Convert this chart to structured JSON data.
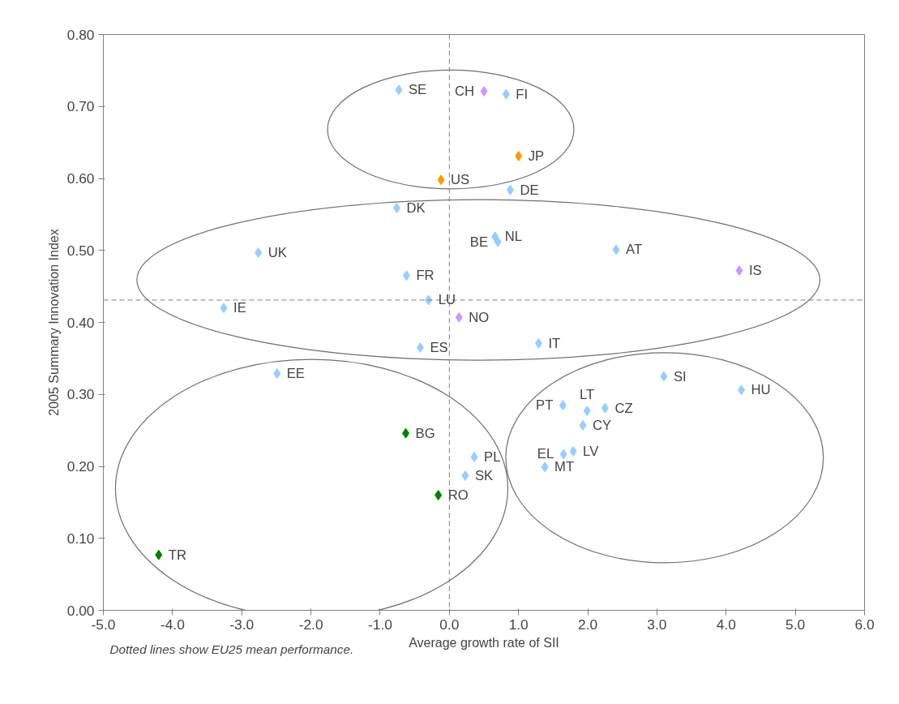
{
  "chart_data": {
    "type": "scatter",
    "xlabel": "Average growth rate of SII",
    "ylabel": "2005 Summary Innovation Index",
    "marker": "diamond",
    "grid": false,
    "xlim": [
      -5,
      6
    ],
    "ylim": [
      0,
      0.8
    ],
    "xticks": [
      {
        "value": -5,
        "label": "-5.0"
      },
      {
        "value": -4,
        "label": "-4.0"
      },
      {
        "value": -3,
        "label": "-3.0"
      },
      {
        "value": -2,
        "label": "-2.0"
      },
      {
        "value": -1,
        "label": "-1.0"
      },
      {
        "value": 0,
        "label": "0.0"
      },
      {
        "value": 1,
        "label": "1.0"
      },
      {
        "value": 2,
        "label": "2.0"
      },
      {
        "value": 3,
        "label": "3.0"
      },
      {
        "value": 4,
        "label": "4.0"
      },
      {
        "value": 5,
        "label": "5.0"
      },
      {
        "value": 6,
        "label": "6.0"
      }
    ],
    "yticks": [
      {
        "value": 0,
        "label": "0.00"
      },
      {
        "value": 0.1,
        "label": "0.10"
      },
      {
        "value": 0.2,
        "label": "0.20"
      },
      {
        "value": 0.3,
        "label": "0.30"
      },
      {
        "value": 0.4,
        "label": "0.40"
      },
      {
        "value": 0.5,
        "label": "0.50"
      },
      {
        "value": 0.6,
        "label": "0.60"
      },
      {
        "value": 0.7,
        "label": "0.70"
      },
      {
        "value": 0.8,
        "label": "0.80"
      }
    ],
    "series": [
      {
        "color": "#99ccff",
        "x": [
          -0.73,
          0.82,
          0.88,
          -0.76,
          0.66,
          0.7,
          -2.76,
          2.41,
          -0.62,
          -0.3,
          -3.26,
          -0.42,
          1.29,
          -2.49,
          3.1,
          4.22,
          1.64,
          1.99,
          2.25,
          1.93,
          0.36,
          1.79,
          1.65,
          1.38,
          0.23
        ],
        "values": [
          0.723,
          0.717,
          0.584,
          0.559,
          0.519,
          0.512,
          0.497,
          0.501,
          0.465,
          0.431,
          0.42,
          0.365,
          0.371,
          0.329,
          0.325,
          0.306,
          0.285,
          0.277,
          0.281,
          0.257,
          0.213,
          0.221,
          0.217,
          0.199,
          0.187
        ]
      },
      {
        "color": "#cc99ff",
        "x": [
          0.5,
          4.19,
          0.14
        ],
        "values": [
          0.721,
          0.472,
          0.407
        ]
      },
      {
        "color": "#ff9900",
        "x": [
          1.0,
          -0.12
        ],
        "values": [
          0.631,
          0.598
        ]
      },
      {
        "color": "#008000",
        "x": [
          -0.63,
          -0.16,
          -4.2
        ],
        "values": [
          0.246,
          0.16,
          0.077
        ]
      }
    ],
    "ref_lines": [
      {
        "axis": "x",
        "value": 0,
        "color": "#808080",
        "line_style": "dashed"
      },
      {
        "axis": "y",
        "value": 0.431,
        "color": "#808080",
        "line_style": "dashed"
      }
    ],
    "annotations": [
      {
        "text": "SE",
        "x": -0.73,
        "y": 0.723
      },
      {
        "text": "FI",
        "x": 0.82,
        "y": 0.717
      },
      {
        "text": "DE",
        "x": 0.88,
        "y": 0.584
      },
      {
        "text": "DK",
        "x": -0.76,
        "y": 0.559
      },
      {
        "text": "NL",
        "x": 0.66,
        "y": 0.519
      },
      {
        "text": "BE",
        "x": 0.7,
        "y": 0.512
      },
      {
        "text": "UK",
        "x": -2.76,
        "y": 0.497
      },
      {
        "text": "AT",
        "x": 2.41,
        "y": 0.501
      },
      {
        "text": "FR",
        "x": -0.62,
        "y": 0.465
      },
      {
        "text": "LU",
        "x": -0.3,
        "y": 0.431
      },
      {
        "text": "IE",
        "x": -3.26,
        "y": 0.42
      },
      {
        "text": "ES",
        "x": -0.42,
        "y": 0.365
      },
      {
        "text": "IT",
        "x": 1.29,
        "y": 0.371
      },
      {
        "text": "EE",
        "x": -2.49,
        "y": 0.329
      },
      {
        "text": "SI",
        "x": 3.1,
        "y": 0.325
      },
      {
        "text": "HU",
        "x": 4.22,
        "y": 0.306
      },
      {
        "text": "PT",
        "x": 1.64,
        "y": 0.285
      },
      {
        "text": "LT",
        "x": 1.99,
        "y": 0.277
      },
      {
        "text": "CZ",
        "x": 2.25,
        "y": 0.281
      },
      {
        "text": "CY",
        "x": 1.93,
        "y": 0.257
      },
      {
        "text": "PL",
        "x": 0.36,
        "y": 0.213
      },
      {
        "text": "LV",
        "x": 1.79,
        "y": 0.221
      },
      {
        "text": "EL",
        "x": 1.65,
        "y": 0.217
      },
      {
        "text": "MT",
        "x": 1.38,
        "y": 0.199
      },
      {
        "text": "SK",
        "x": 0.23,
        "y": 0.187
      },
      {
        "text": "CH",
        "x": 0.5,
        "y": 0.721
      },
      {
        "text": "IS",
        "x": 4.19,
        "y": 0.472
      },
      {
        "text": "NO",
        "x": 0.14,
        "y": 0.407
      },
      {
        "text": "JP",
        "x": 1.0,
        "y": 0.631
      },
      {
        "text": "US",
        "x": -0.12,
        "y": 0.598
      },
      {
        "text": "BG",
        "x": -0.63,
        "y": 0.246
      },
      {
        "text": "RO",
        "x": -0.16,
        "y": 0.16
      },
      {
        "text": "TR",
        "x": -4.2,
        "y": 0.077
      },
      "Dotted lines show EU25 mean performance."
    ]
  }
}
